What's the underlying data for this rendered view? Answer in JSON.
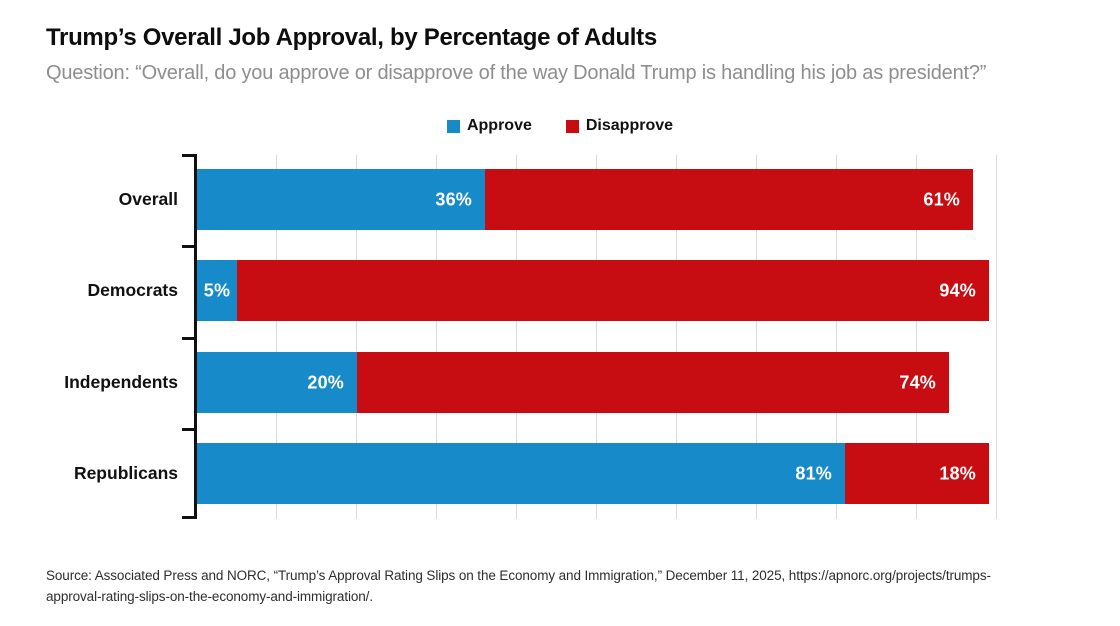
{
  "title": "Trump’s Overall Job Approval, by Percentage of Adults",
  "subtitle": "Question: “Overall, do you approve or disapprove of the way Donald Trump is handling his job as president?”",
  "legend": [
    {
      "label": "Approve",
      "color": "#178bc9"
    },
    {
      "label": "Disapprove",
      "color": "#c70d11"
    }
  ],
  "chart_data": {
    "type": "bar",
    "orientation": "horizontal",
    "stacked": true,
    "title": "Trump’s Overall Job Approval, by Percentage of Adults",
    "categories": [
      "Overall",
      "Democrats",
      "Independents",
      "Republicans"
    ],
    "series": [
      {
        "name": "Approve",
        "color": "#178bc9",
        "values": [
          36,
          5,
          20,
          81
        ]
      },
      {
        "name": "Disapprove",
        "color": "#c70d11",
        "values": [
          61,
          94,
          74,
          18
        ]
      }
    ],
    "value_label_format": "{v}%",
    "xlim": [
      0,
      100
    ],
    "gridline_interval": 10,
    "grid": true,
    "gridline_color": "#d9d9d9",
    "axis_color": "#111111",
    "legend_position": "top-center"
  },
  "source": "Source: Associated Press and NORC, “Trump’s Approval Rating Slips on the Economy and Immigration,” December 11, 2025, https://apnorc.org/projects/trumps-approval-rating-slips-on-the-economy-and-immigration/."
}
